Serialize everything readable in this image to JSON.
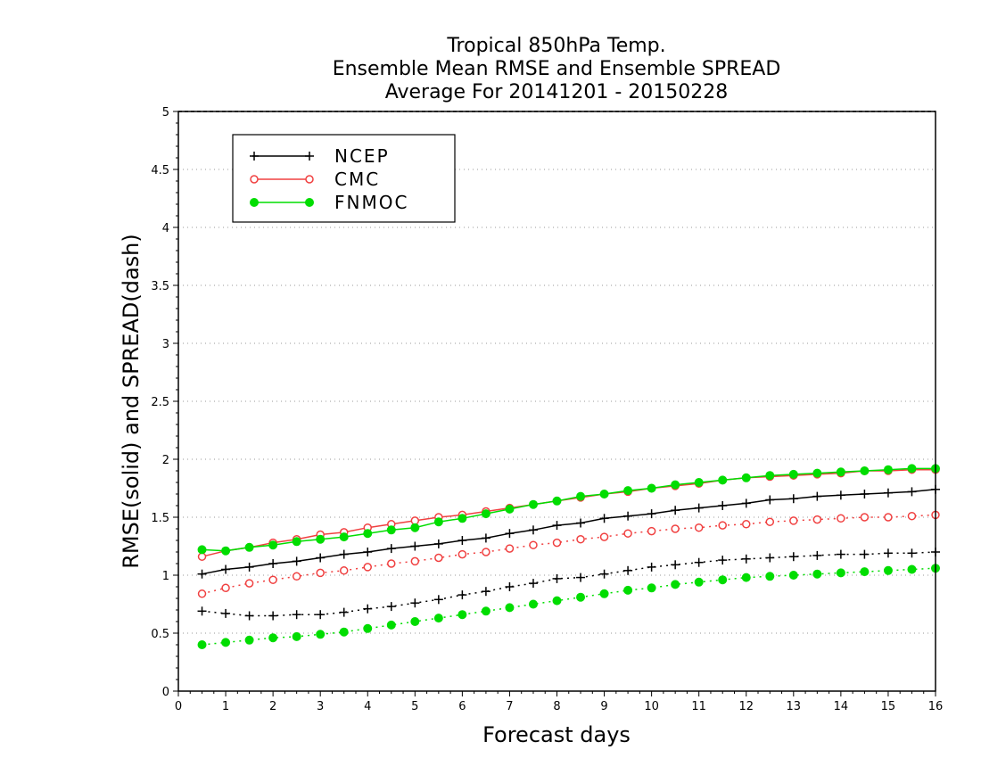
{
  "chart_data": {
    "type": "line",
    "title_lines": [
      "Tropical 850hPa Temp.",
      "Ensemble Mean RMSE and Ensemble SPREAD",
      "Average For 20141201 - 20150228"
    ],
    "xlabel": "Forecast days",
    "ylabel": "RMSE(solid) and SPREAD(dash)",
    "xlim": [
      0,
      16
    ],
    "ylim": [
      0,
      5
    ],
    "x_ticks": [
      "0",
      "1",
      "2",
      "3",
      "4",
      "5",
      "6",
      "7",
      "8",
      "9",
      "10",
      "11",
      "12",
      "13",
      "14",
      "15",
      "16"
    ],
    "y_ticks": [
      "0",
      "0.5",
      "1",
      "1.5",
      "2",
      "2.5",
      "3",
      "3.5",
      "4",
      "4.5",
      "5"
    ],
    "grid": "horizontal dotted",
    "legend_position": "top-left",
    "x": [
      0.5,
      1,
      1.5,
      2,
      2.5,
      3,
      3.5,
      4,
      4.5,
      5,
      5.5,
      6,
      6.5,
      7,
      7.5,
      8,
      8.5,
      9,
      9.5,
      10,
      10.5,
      11,
      11.5,
      12,
      12.5,
      13,
      13.5,
      14,
      14.5,
      15,
      15.5,
      16
    ],
    "series": [
      {
        "name": "NCEP",
        "color": "#000000",
        "marker": "plus",
        "rmse": [
          1.01,
          1.05,
          1.07,
          1.1,
          1.12,
          1.15,
          1.18,
          1.2,
          1.23,
          1.25,
          1.27,
          1.3,
          1.32,
          1.36,
          1.39,
          1.43,
          1.45,
          1.49,
          1.51,
          1.53,
          1.56,
          1.58,
          1.6,
          1.62,
          1.65,
          1.66,
          1.68,
          1.69,
          1.7,
          1.71,
          1.72,
          1.74
        ],
        "spread": [
          0.69,
          0.67,
          0.65,
          0.65,
          0.66,
          0.66,
          0.68,
          0.71,
          0.73,
          0.76,
          0.79,
          0.83,
          0.86,
          0.9,
          0.93,
          0.97,
          0.98,
          1.01,
          1.04,
          1.07,
          1.09,
          1.11,
          1.13,
          1.14,
          1.15,
          1.16,
          1.17,
          1.18,
          1.18,
          1.19,
          1.19,
          1.2
        ]
      },
      {
        "name": "CMC",
        "color": "#f04040",
        "marker": "open-circle",
        "rmse": [
          1.16,
          1.21,
          1.24,
          1.28,
          1.31,
          1.35,
          1.37,
          1.41,
          1.44,
          1.47,
          1.5,
          1.52,
          1.55,
          1.58,
          1.61,
          1.64,
          1.67,
          1.7,
          1.72,
          1.75,
          1.77,
          1.79,
          1.82,
          1.84,
          1.85,
          1.86,
          1.87,
          1.88,
          1.9,
          1.9,
          1.91,
          1.91
        ],
        "spread": [
          0.84,
          0.89,
          0.93,
          0.96,
          0.99,
          1.02,
          1.04,
          1.07,
          1.1,
          1.12,
          1.15,
          1.18,
          1.2,
          1.23,
          1.26,
          1.28,
          1.31,
          1.33,
          1.36,
          1.38,
          1.4,
          1.41,
          1.43,
          1.44,
          1.46,
          1.47,
          1.48,
          1.49,
          1.5,
          1.5,
          1.51,
          1.52
        ]
      },
      {
        "name": "FNMOC",
        "color": "#00dd00",
        "marker": "filled-circle",
        "rmse": [
          1.22,
          1.21,
          1.24,
          1.26,
          1.29,
          1.31,
          1.33,
          1.36,
          1.39,
          1.41,
          1.46,
          1.49,
          1.53,
          1.57,
          1.61,
          1.64,
          1.68,
          1.7,
          1.73,
          1.75,
          1.78,
          1.8,
          1.82,
          1.84,
          1.86,
          1.87,
          1.88,
          1.89,
          1.9,
          1.91,
          1.92,
          1.92
        ],
        "spread": [
          0.4,
          0.42,
          0.44,
          0.46,
          0.47,
          0.49,
          0.51,
          0.54,
          0.57,
          0.6,
          0.63,
          0.66,
          0.69,
          0.72,
          0.75,
          0.78,
          0.81,
          0.84,
          0.87,
          0.89,
          0.92,
          0.94,
          0.96,
          0.98,
          0.99,
          1.0,
          1.01,
          1.02,
          1.03,
          1.04,
          1.05,
          1.06
        ]
      }
    ]
  }
}
